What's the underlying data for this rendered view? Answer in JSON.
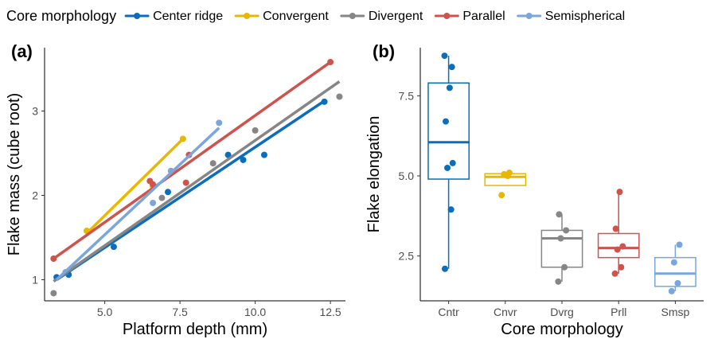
{
  "legend": {
    "title": "Core morphology",
    "position": "top",
    "entries": [
      {
        "label": "Center ridge",
        "color": "#0a6ebd"
      },
      {
        "label": "Convergent",
        "color": "#e7b800"
      },
      {
        "label": "Divergent",
        "color": "#868686"
      },
      {
        "label": "Parallel",
        "color": "#cd534c"
      },
      {
        "label": "Semispherical",
        "color": "#7aa6dc"
      }
    ]
  },
  "chart_data": [
    {
      "type": "scatter",
      "panel_label": "(a)",
      "xlabel": "Platform depth (mm)",
      "ylabel": "Flake mass (cube root)",
      "xlim": [
        3,
        13
      ],
      "ylim": [
        0.75,
        3.75
      ],
      "xticks": [
        "5.0",
        "7.5",
        "10.0",
        "12.5"
      ],
      "xtick_values": [
        5,
        7.5,
        10,
        12.5
      ],
      "yticks": [
        "1",
        "2",
        "3"
      ],
      "ytick_values": [
        1,
        2,
        3
      ],
      "grid": false,
      "series": [
        {
          "name": "Center ridge",
          "color": "#0a6ebd",
          "points": [
            [
              3.4,
              1.03
            ],
            [
              3.8,
              1.06
            ],
            [
              5.3,
              1.39
            ],
            [
              7.1,
              2.04
            ],
            [
              9.1,
              2.48
            ],
            [
              9.6,
              2.42
            ],
            [
              10.3,
              2.48
            ],
            [
              12.3,
              3.11
            ]
          ],
          "fit": [
            [
              3.4,
              1.0
            ],
            [
              12.3,
              3.12
            ]
          ]
        },
        {
          "name": "Convergent",
          "color": "#e7b800",
          "points": [
            [
              4.4,
              1.58
            ],
            [
              6.6,
              2.1
            ],
            [
              7.6,
              2.67
            ]
          ],
          "fit": [
            [
              4.4,
              1.55
            ],
            [
              7.6,
              2.67
            ]
          ]
        },
        {
          "name": "Divergent",
          "color": "#868686",
          "points": [
            [
              3.3,
              0.84
            ],
            [
              6.9,
              1.97
            ],
            [
              8.6,
              2.38
            ],
            [
              10.0,
              2.77
            ],
            [
              12.8,
              3.17
            ]
          ],
          "fit": [
            [
              3.3,
              0.98
            ],
            [
              12.8,
              3.35
            ]
          ]
        },
        {
          "name": "Parallel",
          "color": "#cd534c",
          "points": [
            [
              3.3,
              1.25
            ],
            [
              6.5,
              2.17
            ],
            [
              6.6,
              2.13
            ],
            [
              7.7,
              2.15
            ],
            [
              7.8,
              2.48
            ],
            [
              12.5,
              3.58
            ]
          ],
          "fit": [
            [
              3.3,
              1.25
            ],
            [
              12.5,
              3.58
            ]
          ]
        },
        {
          "name": "Semispherical",
          "color": "#7aa6dc",
          "points": [
            [
              3.7,
              1.09
            ],
            [
              6.6,
              1.91
            ],
            [
              7.2,
              2.29
            ],
            [
              8.8,
              2.86
            ]
          ],
          "fit": [
            [
              3.4,
              1.0
            ],
            [
              8.8,
              2.8
            ]
          ]
        }
      ]
    },
    {
      "type": "box",
      "panel_label": "(b)",
      "xlabel": "Core morphology",
      "ylabel": "Flake elongation",
      "ylim": [
        1.1,
        9.0
      ],
      "yticks": [
        "2.5",
        "5.0",
        "7.5"
      ],
      "ytick_values": [
        2.5,
        5.0,
        7.5
      ],
      "categories": [
        "Cntr",
        "Cnvr",
        "Dvrg",
        "Prll",
        "Smsp"
      ],
      "grid": false,
      "boxes": [
        {
          "category": "Cntr",
          "color": "#0a6ebd",
          "whisker_low": 2.1,
          "q1": 4.9,
          "median": 6.05,
          "q3": 7.9,
          "whisker_high": 8.75,
          "points": [
            2.1,
            3.95,
            5.25,
            5.4,
            6.7,
            7.75,
            8.4,
            8.75
          ]
        },
        {
          "category": "Cnvr",
          "color": "#e7b800",
          "whisker_low": 4.7,
          "q1": 4.7,
          "median": 4.97,
          "q3": 5.07,
          "whisker_high": 5.1,
          "points": [
            4.4,
            5.0,
            5.05,
            5.1
          ]
        },
        {
          "category": "Dvrg",
          "color": "#868686",
          "whisker_low": 1.7,
          "q1": 2.15,
          "median": 3.05,
          "q3": 3.3,
          "whisker_high": 3.8,
          "points": [
            1.7,
            2.15,
            3.05,
            3.3,
            3.8
          ]
        },
        {
          "category": "Prll",
          "color": "#cd534c",
          "whisker_low": 1.95,
          "q1": 2.45,
          "median": 2.75,
          "q3": 3.2,
          "whisker_high": 4.5,
          "points": [
            1.95,
            2.15,
            2.7,
            2.8,
            3.35,
            4.5
          ]
        },
        {
          "category": "Smsp",
          "color": "#7aa6dc",
          "whisker_low": 1.4,
          "q1": 1.55,
          "median": 1.95,
          "q3": 2.45,
          "whisker_high": 2.85,
          "points": [
            1.4,
            1.65,
            2.3,
            2.85
          ]
        }
      ]
    }
  ]
}
